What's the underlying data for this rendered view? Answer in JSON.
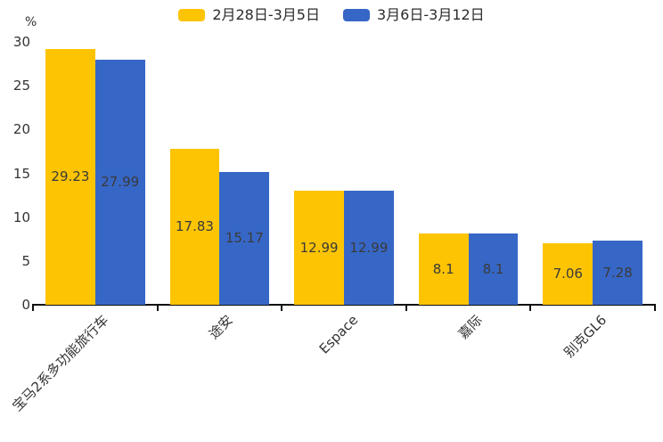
{
  "legend": {
    "items": [
      {
        "label": "2月28日-3月5日",
        "color": "#FDC404"
      },
      {
        "label": "3月6日-3月12日",
        "color": "#3767C6"
      }
    ]
  },
  "chart_data": {
    "type": "bar",
    "title": "",
    "categories": [
      "宝马2系多功能旅行车",
      "途安",
      "Espace",
      "嘉际",
      "别克GL6"
    ],
    "series": [
      {
        "name": "2月28日-3月5日",
        "color": "#FDC404",
        "values": [
          29.23,
          17.83,
          12.99,
          8.1,
          7.06
        ]
      },
      {
        "name": "3月6日-3月12日",
        "color": "#3767C6",
        "values": [
          27.99,
          15.17,
          12.99,
          8.1,
          7.28
        ]
      }
    ],
    "xlabel": "",
    "ylabel": "%",
    "ylim": [
      0,
      30
    ],
    "yticks": [
      0,
      5,
      10,
      15,
      20,
      25,
      30
    ],
    "grid": false,
    "legend_position": "top",
    "value_labels": "centered-inside-bars",
    "x_label_rotation_deg": 45
  }
}
